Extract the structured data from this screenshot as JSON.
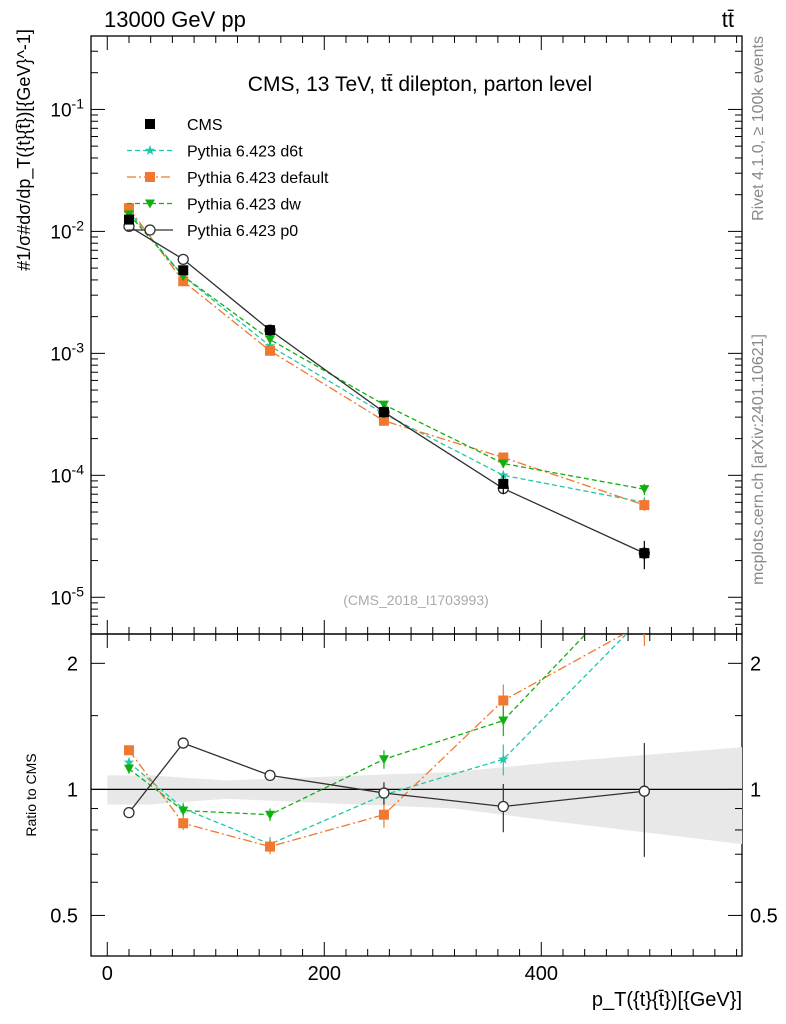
{
  "header": {
    "left": "13000 GeV pp",
    "right": "tt̄"
  },
  "side_text": {
    "rivet": "Rivet 4.1.0, ≥ 100k events",
    "mcplots": "mcplots.cern.ch [arXiv:2401.10621]"
  },
  "chart_data": [
    {
      "type": "line",
      "panel": "main",
      "title": "CMS, 13 TeV, tt̄ dilepton, parton level",
      "watermark": "(CMS_2018_I1703993)",
      "ylabel": "#1/σ#dσ/dp_T({t}{t̄})[{GeV}^-1]",
      "xlabel": "",
      "yscale": "log",
      "ylim": [
        5e-06,
        0.4
      ],
      "xlim": [
        -15,
        585
      ],
      "ytick_labels": [
        "10^-5",
        "10^-4",
        "10^-3",
        "10^-2",
        "10^-1"
      ],
      "ytick_values": [
        1e-05,
        0.0001,
        0.001,
        0.01,
        0.1
      ],
      "legend": {
        "position": "top-left"
      },
      "series": [
        {
          "name": "CMS",
          "color": "#000000",
          "marker": "square",
          "line": "none",
          "x": [
            20,
            70,
            150,
            255,
            365,
            495
          ],
          "y": [
            0.0125,
            0.0048,
            0.00155,
            0.00033,
            8.5e-05,
            2.3e-05
          ],
          "err": [
            0.001,
            0.0004,
            0.0001,
            3e-05,
            1.5e-05,
            6e-06
          ]
        },
        {
          "name": "Pythia 6.423 d6t",
          "color": "#20c8a8",
          "marker": "star",
          "line": "dashed",
          "x": [
            20,
            70,
            150,
            255,
            365,
            495
          ],
          "y": [
            0.0145,
            0.0043,
            0.00115,
            0.00032,
            0.0001,
            6e-05
          ],
          "err": [
            0.0005,
            0.0002,
            5e-05,
            1.5e-05,
            8e-06,
            6e-06
          ]
        },
        {
          "name": "Pythia 6.423 default",
          "color": "#f07830",
          "marker": "square",
          "line": "dashdot",
          "x": [
            20,
            70,
            150,
            255,
            365,
            495
          ],
          "y": [
            0.0155,
            0.0039,
            0.00105,
            0.00028,
            0.00014,
            5.7e-05
          ],
          "err": [
            0.0005,
            0.0002,
            5e-05,
            1.5e-05,
            1e-05,
            6e-06
          ]
        },
        {
          "name": "Pythia 6.423 dw",
          "color": "#10b010",
          "marker": "triangle-down",
          "line": "dashed",
          "x": [
            20,
            70,
            150,
            255,
            365,
            495
          ],
          "y": [
            0.0138,
            0.0043,
            0.0013,
            0.00038,
            0.000125,
            7.7e-05
          ],
          "err": [
            0.0005,
            0.0002,
            5e-05,
            1.5e-05,
            1e-05,
            8e-06
          ]
        },
        {
          "name": "Pythia 6.423 p0",
          "color": "#303030",
          "marker": "circle-open",
          "line": "solid",
          "x": [
            20,
            70,
            150,
            255,
            365,
            495
          ],
          "y": [
            0.011,
            0.0059,
            0.00155,
            0.00033,
            7.8e-05,
            2.3e-05
          ],
          "err": [
            0.0004,
            0.0003,
            7e-05,
            2e-05,
            6e-06,
            3e-06
          ]
        }
      ]
    },
    {
      "type": "line",
      "panel": "ratio",
      "ylabel": "Ratio to CMS",
      "xlabel": "p_T({t}{t̄})[{GeV}]",
      "yscale": "log",
      "ylim": [
        0.4,
        2.35
      ],
      "xlim": [
        -15,
        585
      ],
      "xtick_values": [
        0,
        200,
        400
      ],
      "xtick_labels": [
        "0",
        "200",
        "400"
      ],
      "ytick_values": [
        0.5,
        1,
        2
      ],
      "ytick_labels": [
        "0.5",
        "1",
        "2"
      ],
      "band": {
        "x": [
          0,
          40,
          110,
          190,
          320,
          410,
          585
        ],
        "err": [
          0.08,
          0.08,
          0.05,
          0.07,
          0.1,
          0.16,
          0.26
        ]
      },
      "series": [
        {
          "name": "Pythia 6.423 d6t",
          "color": "#20c8a8",
          "marker": "star",
          "line": "dashed",
          "x": [
            20,
            70,
            150,
            255,
            365,
            495
          ],
          "y": [
            1.16,
            0.9,
            0.74,
            0.97,
            1.18,
            2.6
          ],
          "err": [
            0.03,
            0.03,
            0.03,
            0.05,
            0.1,
            0.3
          ]
        },
        {
          "name": "Pythia 6.423 default",
          "color": "#f07830",
          "marker": "square",
          "line": "dashdot",
          "x": [
            20,
            70,
            150,
            255,
            365,
            495
          ],
          "y": [
            1.24,
            0.83,
            0.73,
            0.87,
            1.63,
            2.5
          ],
          "err": [
            0.03,
            0.03,
            0.03,
            0.06,
            0.15,
            0.3
          ]
        },
        {
          "name": "Pythia 6.423 dw",
          "color": "#10b010",
          "marker": "triangle-down",
          "line": "dashed",
          "x": [
            20,
            70,
            150,
            255,
            365,
            495
          ],
          "y": [
            1.12,
            0.89,
            0.87,
            1.18,
            1.46,
            3.3
          ],
          "err": [
            0.03,
            0.03,
            0.03,
            0.06,
            0.12,
            0.3
          ]
        },
        {
          "name": "Pythia 6.423 p0",
          "color": "#303030",
          "marker": "circle-open",
          "line": "solid",
          "x": [
            20,
            70,
            150,
            255,
            365,
            495
          ],
          "y": [
            0.88,
            1.29,
            1.08,
            0.98,
            0.91,
            0.99
          ],
          "err": [
            0.01,
            0.02,
            0.03,
            0.06,
            0.12,
            0.3
          ]
        }
      ]
    }
  ]
}
